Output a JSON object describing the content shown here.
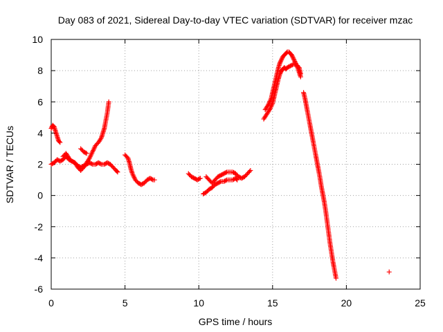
{
  "chart_data": {
    "type": "scatter",
    "title": "Day 083 of 2021, Sidereal Day-to-day VTEC variation (SDTVAR) for receiver mzac",
    "xlabel": "GPS time / hours",
    "ylabel": "SDTVAR / TECUs",
    "xlim": [
      0,
      25
    ],
    "ylim": [
      -6,
      10
    ],
    "xticks": [
      0,
      5,
      10,
      15,
      20,
      25
    ],
    "yticks": [
      -6,
      -4,
      -2,
      0,
      2,
      4,
      6,
      8,
      10
    ],
    "grid": true,
    "marker": "plus",
    "color": "#ff0000",
    "series": [
      {
        "name": "SDTVAR",
        "segments": [
          [
            [
              0.0,
              4.3
            ],
            [
              0.1,
              4.5
            ],
            [
              0.2,
              4.4
            ],
            [
              0.3,
              4.1
            ],
            [
              0.4,
              3.8
            ],
            [
              0.5,
              3.5
            ],
            [
              0.6,
              3.4
            ]
          ],
          [
            [
              0.0,
              2.0
            ],
            [
              0.2,
              2.1
            ],
            [
              0.4,
              2.3
            ],
            [
              0.6,
              2.2
            ],
            [
              0.8,
              2.3
            ],
            [
              1.0,
              2.5
            ],
            [
              1.2,
              2.3
            ],
            [
              1.4,
              2.2
            ],
            [
              1.6,
              2.1
            ],
            [
              1.8,
              1.9
            ],
            [
              2.0,
              1.8
            ],
            [
              2.2,
              1.9
            ],
            [
              2.4,
              2.0
            ],
            [
              2.6,
              2.1
            ],
            [
              2.8,
              2.0
            ],
            [
              3.0,
              2.0
            ],
            [
              3.2,
              2.1
            ],
            [
              3.4,
              2.0
            ],
            [
              3.6,
              2.0
            ],
            [
              3.8,
              2.1
            ],
            [
              4.0,
              2.0
            ],
            [
              4.2,
              1.8
            ],
            [
              4.4,
              1.6
            ],
            [
              4.5,
              1.5
            ]
          ],
          [
            [
              0.8,
              2.5
            ],
            [
              1.0,
              2.7
            ],
            [
              1.2,
              2.4
            ],
            [
              1.4,
              2.2
            ],
            [
              1.6,
              2.1
            ],
            [
              1.8,
              1.8
            ],
            [
              2.0,
              1.6
            ],
            [
              2.2,
              1.8
            ],
            [
              2.4,
              2.1
            ],
            [
              2.6,
              2.4
            ],
            [
              2.8,
              2.8
            ],
            [
              3.0,
              3.2
            ],
            [
              3.2,
              3.4
            ],
            [
              3.4,
              3.7
            ],
            [
              3.5,
              4.0
            ],
            [
              3.6,
              4.3
            ],
            [
              3.7,
              4.8
            ],
            [
              3.8,
              5.3
            ],
            [
              3.9,
              6.0
            ]
          ],
          [
            [
              2.0,
              3.0
            ],
            [
              2.2,
              2.8
            ],
            [
              2.4,
              2.7
            ]
          ],
          [
            [
              5.0,
              2.6
            ],
            [
              5.2,
              2.4
            ],
            [
              5.3,
              2.1
            ],
            [
              5.4,
              1.7
            ],
            [
              5.5,
              1.4
            ],
            [
              5.7,
              1.0
            ],
            [
              5.9,
              0.8
            ],
            [
              6.1,
              0.7
            ],
            [
              6.3,
              0.8
            ],
            [
              6.5,
              1.0
            ],
            [
              6.7,
              1.1
            ],
            [
              6.9,
              1.0
            ],
            [
              7.0,
              1.0
            ]
          ],
          [
            [
              9.3,
              1.4
            ],
            [
              9.5,
              1.2
            ],
            [
              9.7,
              1.1
            ],
            [
              9.9,
              1.0
            ],
            [
              10.1,
              1.1
            ]
          ],
          [
            [
              10.3,
              0.1
            ],
            [
              10.5,
              0.2
            ],
            [
              10.7,
              0.4
            ],
            [
              10.9,
              0.5
            ],
            [
              11.1,
              0.7
            ],
            [
              11.3,
              0.8
            ],
            [
              11.5,
              0.9
            ],
            [
              11.7,
              0.9
            ],
            [
              11.9,
              1.0
            ],
            [
              12.1,
              1.0
            ],
            [
              12.3,
              1.0
            ],
            [
              12.5,
              1.1
            ],
            [
              12.6,
              1.0
            ]
          ],
          [
            [
              10.5,
              1.2
            ],
            [
              10.7,
              1.0
            ],
            [
              10.9,
              0.8
            ],
            [
              11.1,
              1.0
            ],
            [
              11.3,
              1.2
            ],
            [
              11.5,
              1.3
            ],
            [
              11.7,
              1.4
            ],
            [
              11.9,
              1.5
            ],
            [
              12.1,
              1.5
            ],
            [
              12.3,
              1.5
            ],
            [
              12.5,
              1.4
            ],
            [
              12.7,
              1.2
            ],
            [
              12.9,
              1.1
            ],
            [
              13.1,
              1.2
            ],
            [
              13.3,
              1.4
            ],
            [
              13.5,
              1.6
            ]
          ],
          [
            [
              14.4,
              4.9
            ],
            [
              14.6,
              5.2
            ],
            [
              14.8,
              5.5
            ],
            [
              15.0,
              5.9
            ],
            [
              15.1,
              6.3
            ],
            [
              15.2,
              6.7
            ],
            [
              15.3,
              7.1
            ],
            [
              15.4,
              7.5
            ],
            [
              15.5,
              7.8
            ],
            [
              15.6,
              8.0
            ],
            [
              15.7,
              8.1
            ],
            [
              15.8,
              8.2
            ],
            [
              15.9,
              8.1
            ],
            [
              16.0,
              8.2
            ],
            [
              16.2,
              8.3
            ],
            [
              16.4,
              8.4
            ],
            [
              16.6,
              8.4
            ],
            [
              16.8,
              8.2
            ],
            [
              16.9,
              7.8
            ]
          ],
          [
            [
              14.5,
              5.5
            ],
            [
              14.7,
              5.8
            ],
            [
              14.9,
              6.2
            ],
            [
              15.0,
              6.6
            ],
            [
              15.1,
              7.0
            ],
            [
              15.2,
              7.4
            ],
            [
              15.3,
              7.8
            ],
            [
              15.4,
              8.2
            ],
            [
              15.5,
              8.5
            ],
            [
              15.6,
              8.7
            ],
            [
              15.7,
              8.9
            ],
            [
              15.8,
              9.0
            ],
            [
              15.9,
              9.1
            ],
            [
              16.0,
              9.2
            ],
            [
              16.1,
              9.2
            ],
            [
              16.2,
              9.1
            ],
            [
              16.3,
              9.0
            ],
            [
              16.4,
              8.8
            ],
            [
              16.5,
              8.6
            ],
            [
              16.6,
              8.4
            ],
            [
              16.7,
              8.2
            ],
            [
              16.8,
              7.9
            ],
            [
              16.9,
              7.6
            ]
          ],
          [
            [
              17.1,
              6.6
            ],
            [
              17.2,
              6.2
            ],
            [
              17.3,
              5.7
            ],
            [
              17.4,
              5.2
            ],
            [
              17.5,
              4.7
            ],
            [
              17.6,
              4.2
            ],
            [
              17.7,
              3.7
            ],
            [
              17.8,
              3.2
            ],
            [
              17.9,
              2.7
            ],
            [
              18.0,
              2.2
            ],
            [
              18.1,
              1.7
            ],
            [
              18.2,
              1.2
            ],
            [
              18.3,
              0.6
            ],
            [
              18.4,
              0.1
            ],
            [
              18.5,
              -0.4
            ],
            [
              18.6,
              -1.0
            ],
            [
              18.7,
              -1.7
            ],
            [
              18.8,
              -2.4
            ],
            [
              18.9,
              -3.1
            ],
            [
              19.0,
              -3.7
            ],
            [
              19.1,
              -4.3
            ],
            [
              19.2,
              -4.8
            ],
            [
              19.3,
              -5.3
            ]
          ],
          [
            [
              22.9,
              -4.9
            ]
          ]
        ]
      }
    ]
  }
}
